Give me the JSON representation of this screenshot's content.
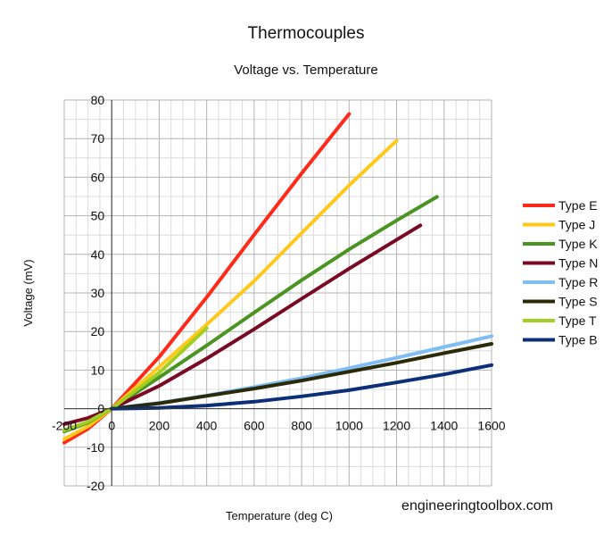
{
  "chart_data": {
    "type": "line",
    "title": "Thermocouples",
    "subtitle": "Voltage vs. Temperature",
    "xlabel": "Temperature (deg C)",
    "ylabel": "Voltage (mV)",
    "xlim": [
      -200,
      1600
    ],
    "ylim": [
      -20,
      80
    ],
    "xticks": [
      -200,
      0,
      200,
      400,
      600,
      800,
      1000,
      1200,
      1400,
      1600
    ],
    "yticks": [
      -20,
      -10,
      0,
      10,
      20,
      30,
      40,
      50,
      60,
      70,
      80
    ],
    "grid": true,
    "legend_position": "right",
    "series": [
      {
        "name": "Type E",
        "color": "#ff2a1a",
        "x": [
          -200,
          -100,
          0,
          200,
          400,
          600,
          800,
          1000
        ],
        "y": [
          -8.8,
          -5.2,
          0,
          13.4,
          28.9,
          45.1,
          61.0,
          76.4
        ]
      },
      {
        "name": "Type J",
        "color": "#ffc91a",
        "x": [
          -200,
          -100,
          0,
          200,
          400,
          600,
          800,
          1000,
          1200
        ],
        "y": [
          -7.9,
          -4.6,
          0,
          10.8,
          21.8,
          33.1,
          45.5,
          57.9,
          69.5
        ]
      },
      {
        "name": "Type K",
        "color": "#4a9421",
        "x": [
          -200,
          -100,
          0,
          200,
          400,
          600,
          800,
          1000,
          1200,
          1370
        ],
        "y": [
          -5.9,
          -3.6,
          0,
          8.1,
          16.4,
          24.9,
          33.3,
          41.3,
          48.8,
          54.9
        ]
      },
      {
        "name": "Type N",
        "color": "#7a0a24",
        "x": [
          -200,
          -100,
          0,
          200,
          400,
          600,
          800,
          1000,
          1200,
          1300
        ],
        "y": [
          -4.0,
          -2.4,
          0,
          5.9,
          13.0,
          20.6,
          28.5,
          36.3,
          43.8,
          47.5
        ]
      },
      {
        "name": "Type R",
        "color": "#7fbdf5",
        "x": [
          0,
          200,
          400,
          600,
          800,
          1000,
          1200,
          1400,
          1600
        ],
        "y": [
          0,
          1.5,
          3.4,
          5.6,
          7.9,
          10.5,
          13.2,
          16.0,
          18.8
        ]
      },
      {
        "name": "Type S",
        "color": "#2a2a08",
        "x": [
          0,
          200,
          400,
          600,
          800,
          1000,
          1200,
          1400,
          1600
        ],
        "y": [
          0,
          1.4,
          3.3,
          5.2,
          7.3,
          9.6,
          11.9,
          14.4,
          16.8
        ]
      },
      {
        "name": "Type T",
        "color": "#a2cf22",
        "x": [
          -200,
          -100,
          0,
          200,
          400
        ],
        "y": [
          -5.6,
          -3.4,
          0,
          9.3,
          20.9
        ]
      },
      {
        "name": "Type B",
        "color": "#0d2f7a",
        "x": [
          0,
          200,
          400,
          600,
          800,
          1000,
          1200,
          1400,
          1600
        ],
        "y": [
          0,
          0.2,
          0.8,
          1.8,
          3.2,
          4.8,
          6.8,
          8.9,
          11.3
        ]
      }
    ]
  },
  "watermark": "engineeringtoolbox.com"
}
